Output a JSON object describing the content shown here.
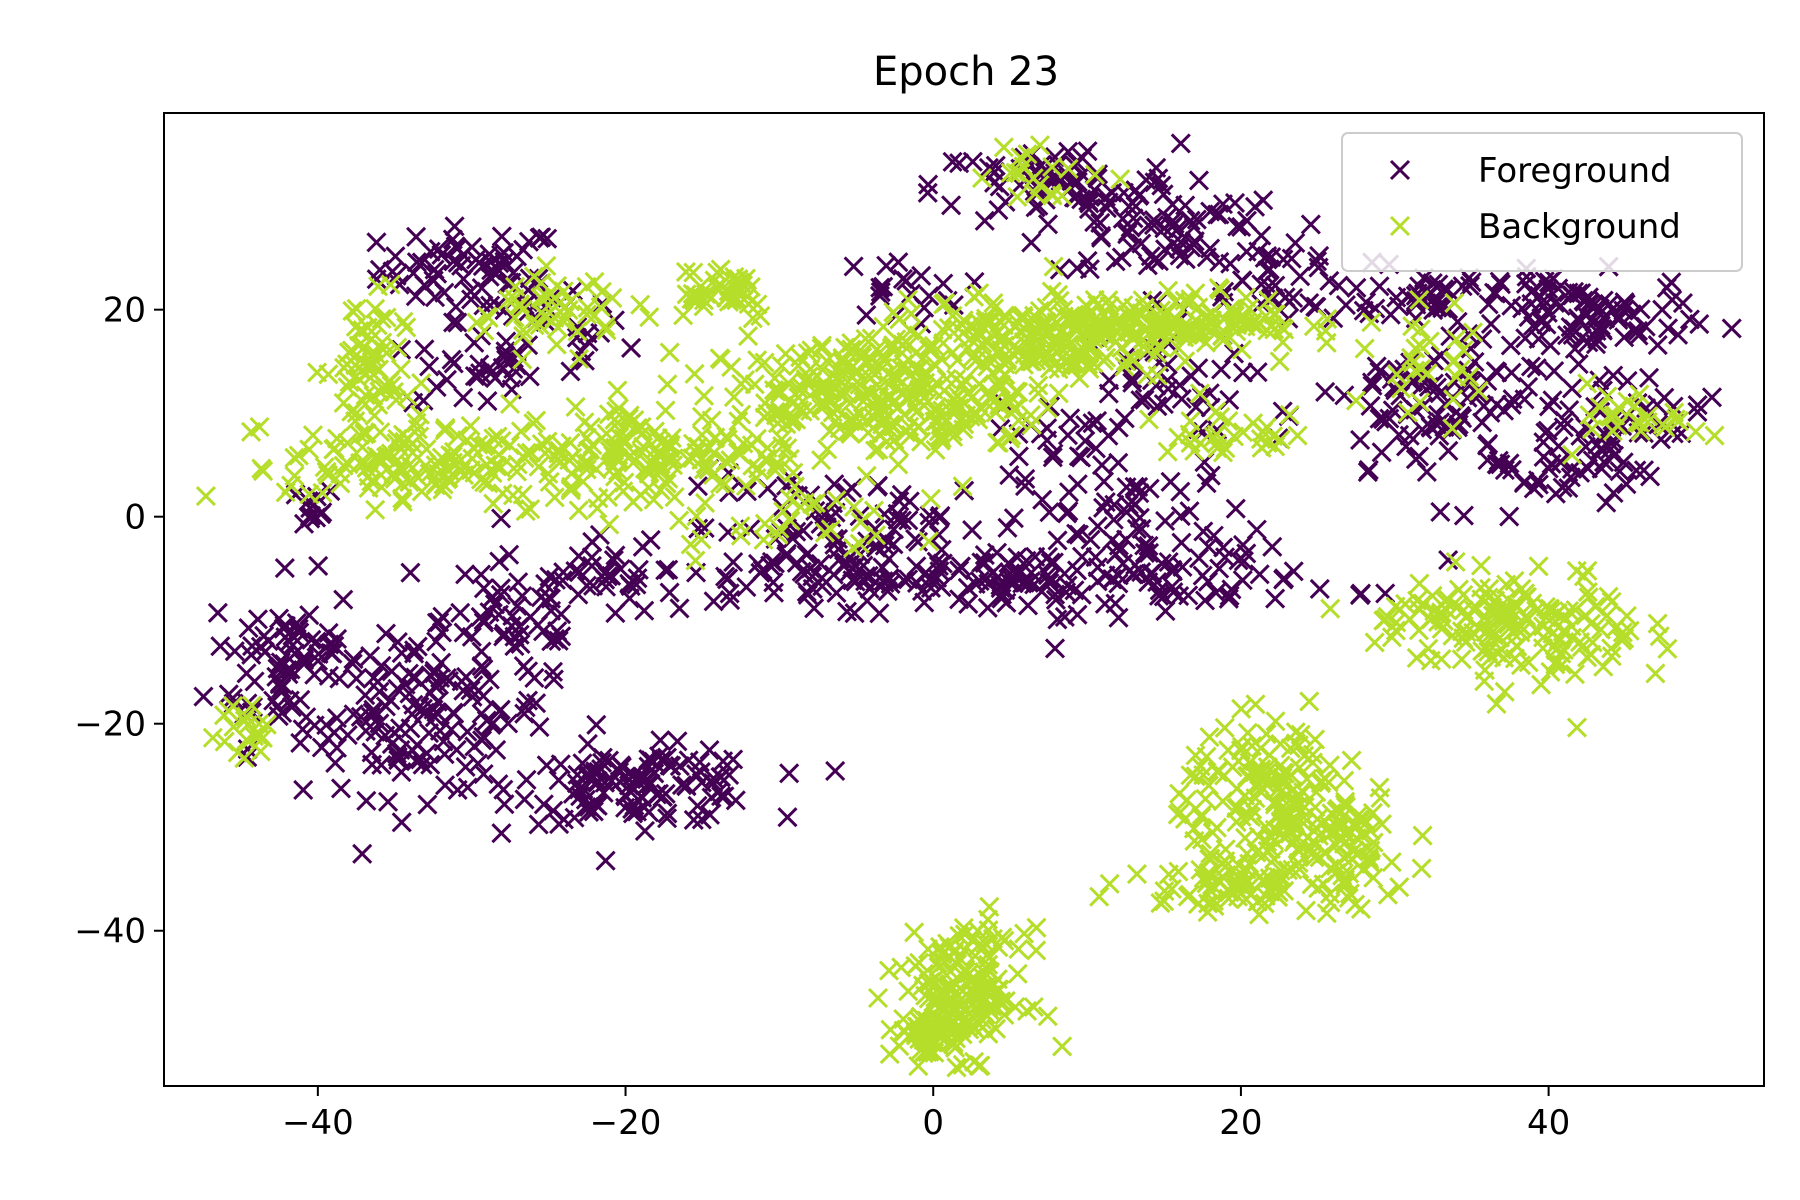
{
  "chart_data": {
    "type": "scatter",
    "title": "Epoch 23",
    "xlabel": "",
    "ylabel": "",
    "xlim": [
      -50,
      54
    ],
    "ylim": [
      -55,
      39
    ],
    "xticks": [
      -40,
      -20,
      0,
      20,
      40
    ],
    "yticks": [
      -40,
      -20,
      0,
      20
    ],
    "xtick_labels": [
      "−40",
      "−20",
      "0",
      "20",
      "40"
    ],
    "ytick_labels": [
      "−40",
      "−20",
      "0",
      "20"
    ],
    "grid": false,
    "legend": "top-right",
    "marker": "x",
    "series": [
      {
        "name": "Foreground",
        "color": "#440154",
        "clusters": [
          {
            "cx": -30,
            "cy": 24,
            "sx": 3,
            "sy": 2,
            "n": 60
          },
          {
            "cx": -26,
            "cy": 18,
            "sx": 3,
            "sy": 3,
            "n": 40
          },
          {
            "cx": -30,
            "cy": 14,
            "sx": 2,
            "sy": 2,
            "n": 25
          },
          {
            "cx": -41,
            "cy": 1,
            "sx": 1.2,
            "sy": 1,
            "n": 12
          },
          {
            "cx": -42,
            "cy": -14,
            "sx": 2.5,
            "sy": 4,
            "n": 80
          },
          {
            "cx": -33,
            "cy": -19,
            "sx": 4,
            "sy": 4,
            "n": 140
          },
          {
            "cx": -27,
            "cy": -10,
            "sx": 2.5,
            "sy": 3,
            "n": 50
          },
          {
            "cx": -21,
            "cy": -6,
            "sx": 1.5,
            "sy": 2,
            "n": 20
          },
          {
            "cx": -19,
            "cy": -26,
            "sx": 4,
            "sy": 1.8,
            "n": 120
          },
          {
            "cx": -2,
            "cy": 22,
            "sx": 2,
            "sy": 1.5,
            "n": 20
          },
          {
            "cx": 8,
            "cy": 32,
            "sx": 4,
            "sy": 2,
            "n": 70
          },
          {
            "cx": 15,
            "cy": 28,
            "sx": 4,
            "sy": 2.5,
            "n": 70
          },
          {
            "cx": 22,
            "cy": 23,
            "sx": 3,
            "sy": 2,
            "n": 40
          },
          {
            "cx": 14,
            "cy": 13,
            "sx": 3,
            "sy": 2.5,
            "n": 40
          },
          {
            "cx": 8,
            "cy": 8,
            "sx": 2,
            "sy": 1.5,
            "n": 20
          },
          {
            "cx": 2,
            "cy": -6,
            "sx": 12,
            "sy": 1.5,
            "n": 180
          },
          {
            "cx": -5,
            "cy": -1,
            "sx": 6,
            "sy": 2.5,
            "n": 80
          },
          {
            "cx": 13,
            "cy": -1,
            "sx": 4,
            "sy": 4,
            "n": 80
          },
          {
            "cx": 34,
            "cy": 21,
            "sx": 4,
            "sy": 1.5,
            "n": 60
          },
          {
            "cx": 33,
            "cy": 10,
            "sx": 4,
            "sy": 4,
            "n": 100
          },
          {
            "cx": 43,
            "cy": 19,
            "sx": 3,
            "sy": 2,
            "n": 70
          },
          {
            "cx": 44,
            "cy": 9,
            "sx": 3,
            "sy": 3,
            "n": 60
          },
          {
            "cx": 40,
            "cy": 5,
            "sx": 2,
            "sy": 2,
            "n": 20
          }
        ]
      },
      {
        "name": "Background",
        "color": "#b5de2b",
        "clusters": [
          {
            "cx": -37,
            "cy": 14,
            "sx": 1.3,
            "sy": 4,
            "n": 70
          },
          {
            "cx": -34,
            "cy": 5,
            "sx": 4,
            "sy": 2,
            "n": 120
          },
          {
            "cx": -26,
            "cy": 20,
            "sx": 2,
            "sy": 2,
            "n": 30
          },
          {
            "cx": -22,
            "cy": 20,
            "sx": 2,
            "sy": 2,
            "n": 20
          },
          {
            "cx": -14,
            "cy": 22,
            "sx": 2,
            "sy": 1.5,
            "n": 40
          },
          {
            "cx": -18,
            "cy": 6,
            "sx": 5,
            "sy": 2.5,
            "n": 160
          },
          {
            "cx": -5,
            "cy": 12,
            "sx": 5,
            "sy": 2.5,
            "n": 220
          },
          {
            "cx": 6,
            "cy": 17,
            "sx": 5,
            "sy": 2,
            "n": 200
          },
          {
            "cx": 16,
            "cy": 19,
            "sx": 4,
            "sy": 1.3,
            "n": 140
          },
          {
            "cx": 7,
            "cy": 33,
            "sx": 2,
            "sy": 1.5,
            "n": 20
          },
          {
            "cx": 20,
            "cy": 8,
            "sx": 3,
            "sy": 1,
            "n": 30
          },
          {
            "cx": 0,
            "cy": 9,
            "sx": 3,
            "sy": 2,
            "n": 40
          },
          {
            "cx": -10,
            "cy": 0,
            "sx": 4,
            "sy": 2,
            "n": 30
          },
          {
            "cx": 33,
            "cy": -10,
            "sx": 3,
            "sy": 2,
            "n": 60
          },
          {
            "cx": 40,
            "cy": -11,
            "sx": 3,
            "sy": 3,
            "n": 110
          },
          {
            "cx": 22,
            "cy": -26,
            "sx": 3,
            "sy": 3,
            "n": 110
          },
          {
            "cx": 25,
            "cy": -32,
            "sx": 3,
            "sy": 3,
            "n": 120
          },
          {
            "cx": 19,
            "cy": -35,
            "sx": 3,
            "sy": 1.5,
            "n": 70
          },
          {
            "cx": 2,
            "cy": -46,
            "sx": 2,
            "sy": 3,
            "n": 160
          },
          {
            "cx": 0,
            "cy": -50,
            "sx": 1.2,
            "sy": 1,
            "n": 60
          },
          {
            "cx": -45,
            "cy": -21,
            "sx": 1,
            "sy": 1.5,
            "n": 20
          },
          {
            "cx": 46,
            "cy": 10,
            "sx": 2,
            "sy": 1.5,
            "n": 30
          },
          {
            "cx": 33,
            "cy": 14,
            "sx": 2,
            "sy": 3,
            "n": 30
          }
        ]
      }
    ]
  }
}
